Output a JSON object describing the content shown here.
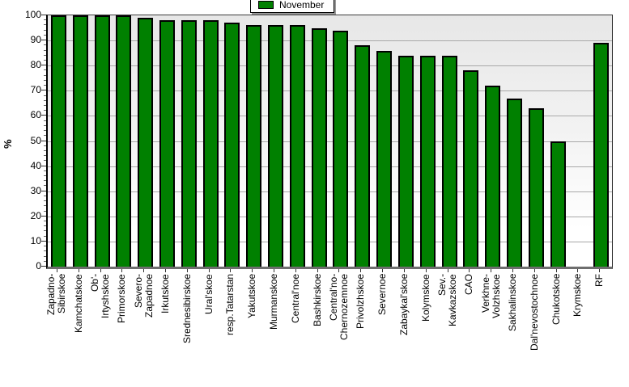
{
  "chart_data": {
    "type": "bar",
    "title": "",
    "ylabel": "%",
    "ylim": [
      0,
      100
    ],
    "yticks": [
      0,
      10,
      20,
      30,
      40,
      50,
      60,
      70,
      80,
      90,
      100
    ],
    "grid": true,
    "legend_position": "top-center",
    "legend": [
      {
        "label": "November",
        "color": "#008000"
      }
    ],
    "categories": [
      "Zapadno-\nSibirskoe",
      "Kamchatskoe",
      "Ob'-\nIrtyshskoe",
      "Primorskoe",
      "Severo-\nZapadnoe",
      "Irkutskoe",
      "Srednesibirskoe",
      "Ural'skoe",
      "resp.Tatarstan",
      "Yakutskoe",
      "Murmanskoe",
      "Central'noe",
      "Bashkirskoe",
      "Central'no-\nChernozemnoe",
      "Privolzhskoe",
      "Severnoe",
      "Zabaykal'skoe",
      "Kolymskoe",
      "Sev.-\nKavkazskoe",
      "CAO",
      "Verkhne-\nVolzhskoe",
      "Sakhalinskoe",
      "Dal'nevostochnoe",
      "Chukotskoe",
      "Krymskoe",
      "RF"
    ],
    "series": [
      {
        "name": "November",
        "values": [
          100,
          100,
          100,
          100,
          99,
          98,
          98,
          98,
          97,
          96,
          96,
          96,
          95,
          94,
          88,
          86,
          84,
          84,
          84,
          78,
          72,
          67,
          63,
          50,
          0,
          89
        ]
      }
    ],
    "colors": {
      "bar_fill": "#008000",
      "bar_border": "#000000",
      "plot_bg_top": "#e7e7e7",
      "plot_bg_bottom": "#ffffff",
      "gridline": "#a8a8a8"
    }
  }
}
